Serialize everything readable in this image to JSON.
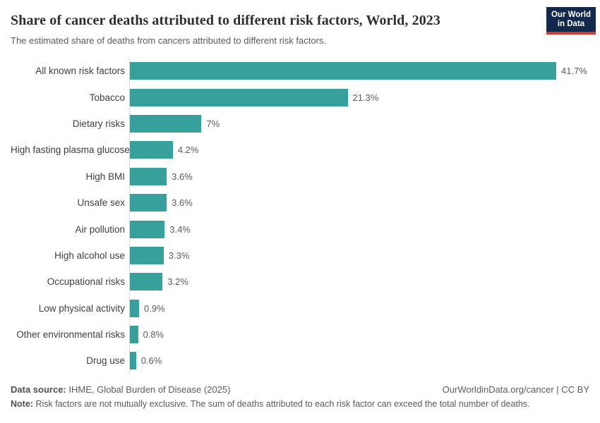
{
  "header": {
    "title": "Share of cancer deaths attributed to different risk factors, World, 2023",
    "subtitle": "The estimated share of deaths from cancers attributed to different risk factors.",
    "logo": {
      "line1": "Our World",
      "line2": "in Data",
      "bg_color": "#12294b",
      "accent_color": "#d13b32"
    }
  },
  "chart_data": {
    "type": "bar",
    "orientation": "horizontal",
    "title": "Share of cancer deaths attributed to different risk factors, World, 2023",
    "xlabel": "",
    "ylabel": "",
    "xlim": [
      0,
      41.7
    ],
    "grid": false,
    "legend": false,
    "bar_color": "#38a09a",
    "axis_line_color": "#d9d9d9",
    "categories": [
      "All known risk factors",
      "Tobacco",
      "Dietary risks",
      "High fasting plasma glucose",
      "High BMI",
      "Unsafe sex",
      "Air pollution",
      "High alcohol use",
      "Occupational risks",
      "Low physical activity",
      "Other environmental risks",
      "Drug use"
    ],
    "values": [
      41.7,
      21.3,
      7,
      4.2,
      3.6,
      3.6,
      3.4,
      3.3,
      3.2,
      0.9,
      0.8,
      0.6
    ],
    "value_labels": [
      "41.7%",
      "21.3%",
      "7%",
      "4.2%",
      "3.6%",
      "3.6%",
      "3.4%",
      "3.3%",
      "3.2%",
      "0.9%",
      "0.8%",
      "0.6%"
    ]
  },
  "footer": {
    "source_label": "Data source:",
    "source_text": "IHME, Global Burden of Disease (2025)",
    "attribution_text": "OurWorldinData.org/cancer | CC BY",
    "note_label": "Note:",
    "note_text": "Risk factors are not mutually exclusive. The sum of deaths attributed to each risk factor can exceed the total number of deaths."
  }
}
